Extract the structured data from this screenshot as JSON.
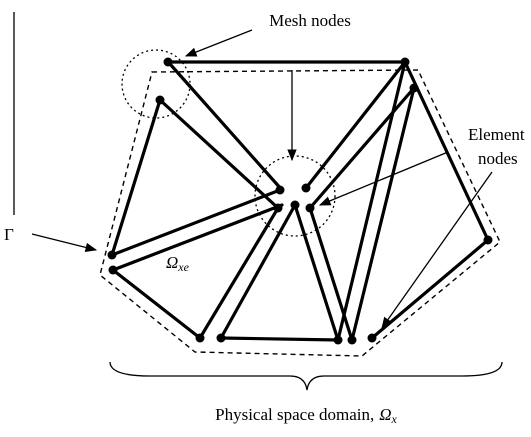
{
  "labels": {
    "mesh_nodes": "Mesh nodes",
    "element_nodes": [
      "Element",
      "nodes"
    ],
    "boundary": "Γ",
    "element_domain": {
      "symbol": "Ω",
      "subscript": "xe"
    },
    "physical_domain": {
      "text": "Physical space domain,",
      "symbol": "Ω",
      "subscript": "x"
    }
  }
}
